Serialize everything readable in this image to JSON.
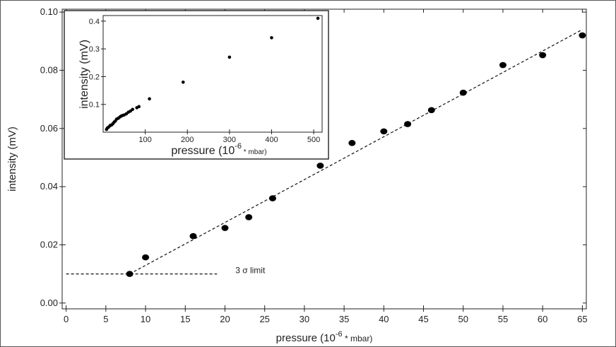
{
  "chart_data": [
    {
      "type": "scatter",
      "xlabel": "pressure (10",
      "xlabel_exponent": "-6",
      "xlabel_unit": " * mbar)",
      "ylabel": "intensity (mV)",
      "xlim": [
        -0.5,
        65.5
      ],
      "ylim": [
        -0.002,
        0.101
      ],
      "xticks": [
        0,
        5,
        10,
        15,
        20,
        25,
        30,
        35,
        40,
        45,
        50,
        55,
        60,
        65
      ],
      "yticks": [
        0.0,
        0.02,
        0.04,
        0.06,
        0.08,
        0.1
      ],
      "ytick_labels": [
        "0.00",
        "0.02",
        "0.04",
        "0.06",
        "0.08",
        "0.10"
      ],
      "grid": false,
      "series": [
        {
          "x": [
            8,
            10,
            16,
            20,
            23,
            26,
            32,
            36,
            40,
            43,
            46,
            50,
            55,
            60,
            65
          ],
          "y": [
            0.01,
            0.0157,
            0.023,
            0.0258,
            0.0295,
            0.036,
            0.0472,
            0.055,
            0.059,
            0.0615,
            0.0663,
            0.0723,
            0.0818,
            0.0852,
            0.092
          ]
        }
      ],
      "fit_line": {
        "x": [
          8,
          65
        ],
        "y": [
          0.01,
          0.094
        ],
        "style": "dashed"
      },
      "limit_line": {
        "x": [
          0,
          19
        ],
        "y": 0.01,
        "style": "dashed",
        "label": "3 σ limit"
      }
    },
    {
      "type": "scatter",
      "inset": true,
      "xlabel": "pressure (10",
      "xlabel_exponent": "-6",
      "xlabel_unit": " * mbar)",
      "ylabel": "intensity (mV)",
      "xlim": [
        0,
        520
      ],
      "ylim": [
        0.0,
        0.42
      ],
      "xticks": [
        100,
        200,
        300,
        400,
        500
      ],
      "yticks": [
        0.1,
        0.2,
        0.3,
        0.4
      ],
      "ytick_labels": [
        "0.1",
        "0.2",
        "0.3",
        "0.4"
      ],
      "grid": false,
      "series": [
        {
          "x": [
            8,
            10,
            13,
            16,
            18,
            20,
            23,
            26,
            29,
            32,
            36,
            40,
            43,
            46,
            50,
            55,
            60,
            65,
            70,
            80,
            85,
            110,
            190,
            300,
            400,
            510
          ],
          "y": [
            0.01,
            0.015,
            0.018,
            0.023,
            0.025,
            0.026,
            0.03,
            0.036,
            0.04,
            0.047,
            0.05,
            0.055,
            0.058,
            0.06,
            0.062,
            0.066,
            0.072,
            0.076,
            0.082,
            0.088,
            0.092,
            0.12,
            0.18,
            0.27,
            0.34,
            0.41
          ]
        }
      ]
    }
  ]
}
